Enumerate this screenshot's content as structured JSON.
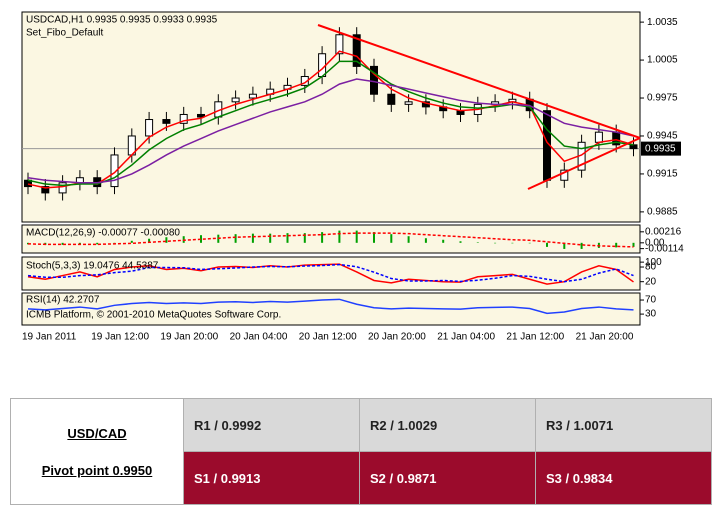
{
  "chart_data": {
    "type": "candlestick",
    "title": "USDCAD,H1  0.9935 0.9935 0.9933 0.9935",
    "subtitle": "Set_Fibo_Default",
    "open": [
      0.991,
      0.9905,
      0.99,
      0.9908,
      0.9912,
      0.9905,
      0.993,
      0.9945,
      0.9958,
      0.9955,
      0.9962,
      0.996,
      0.9972,
      0.9975,
      0.9978,
      0.9982,
      0.9985,
      0.9992,
      1.001,
      1.0025,
      1.0,
      0.9978,
      0.997,
      0.9972,
      0.9968,
      0.9965,
      0.9962,
      0.997,
      0.9972,
      0.9974,
      0.9965,
      0.991,
      0.9918,
      0.994,
      0.9948,
      0.9938
    ],
    "high": [
      0.9916,
      0.9911,
      0.9914,
      0.9918,
      0.9918,
      0.9936,
      0.9951,
      0.9964,
      0.9964,
      0.9968,
      0.9968,
      0.9978,
      0.9981,
      0.9984,
      0.9988,
      0.9991,
      0.9998,
      1.0016,
      1.0031,
      1.0031,
      1.0006,
      0.9984,
      0.9978,
      0.9978,
      0.9974,
      0.9971,
      0.9976,
      0.9978,
      0.998,
      0.998,
      0.9971,
      0.9924,
      0.9946,
      0.9954,
      0.9954,
      0.9944
    ],
    "low": [
      0.9899,
      0.9894,
      0.9894,
      0.9902,
      0.9899,
      0.9899,
      0.9924,
      0.9939,
      0.9949,
      0.9949,
      0.9954,
      0.9954,
      0.9966,
      0.9969,
      0.9972,
      0.9976,
      0.9979,
      0.9986,
      1.0004,
      0.9994,
      0.9972,
      0.9964,
      0.9964,
      0.9962,
      0.9959,
      0.9956,
      0.9956,
      0.9964,
      0.9966,
      0.9959,
      0.9904,
      0.9904,
      0.9912,
      0.9934,
      0.9932,
      0.9929
    ],
    "close": [
      0.9905,
      0.99,
      0.9908,
      0.9912,
      0.9905,
      0.993,
      0.9945,
      0.9958,
      0.9955,
      0.9962,
      0.996,
      0.9972,
      0.9975,
      0.9978,
      0.9982,
      0.9985,
      0.9992,
      1.001,
      1.0025,
      1.0,
      0.9978,
      0.997,
      0.9972,
      0.9968,
      0.9965,
      0.9962,
      0.997,
      0.9972,
      0.9974,
      0.9965,
      0.991,
      0.9918,
      0.994,
      0.9948,
      0.9938,
      0.9935
    ],
    "series": [
      {
        "color": "#ff0000",
        "values": [
          0.9907,
          0.9904,
          0.9905,
          0.9908,
          0.9907,
          0.9916,
          0.993,
          0.9944,
          0.9952,
          0.9957,
          0.9959,
          0.9965,
          0.997,
          0.9974,
          0.9978,
          0.9982,
          0.9987,
          0.9998,
          1.0012,
          1.0008,
          0.9994,
          0.9982,
          0.9975,
          0.9971,
          0.9968,
          0.9965,
          0.9966,
          0.9969,
          0.9972,
          0.9969,
          0.994,
          0.9925,
          0.993,
          0.994,
          0.9942,
          0.9938
        ]
      },
      {
        "color": "#008000",
        "values": [
          0.991,
          0.9907,
          0.9906,
          0.9907,
          0.9907,
          0.9912,
          0.9922,
          0.9934,
          0.9943,
          0.995,
          0.9954,
          0.996,
          0.9965,
          0.997,
          0.9974,
          0.9978,
          0.9983,
          0.9992,
          1.0004,
          1.0004,
          0.9995,
          0.9986,
          0.998,
          0.9975,
          0.9971,
          0.9968,
          0.9967,
          0.9968,
          0.997,
          0.9968,
          0.995,
          0.9937,
          0.9935,
          0.9938,
          0.994,
          0.9938
        ]
      },
      {
        "color": "#7b1fa2",
        "values": [
          0.9912,
          0.991,
          0.9909,
          0.9908,
          0.9908,
          0.991,
          0.9915,
          0.9922,
          0.993,
          0.9937,
          0.9943,
          0.9949,
          0.9954,
          0.9959,
          0.9964,
          0.9968,
          0.9972,
          0.9978,
          0.9986,
          0.999,
          0.9988,
          0.9985,
          0.9982,
          0.9979,
          0.9976,
          0.9973,
          0.9971,
          0.997,
          0.997,
          0.9969,
          0.9962,
          0.9955,
          0.9952,
          0.995,
          0.9948,
          0.9945
        ]
      }
    ],
    "ylim": [
      0.9877,
      1.0043
    ],
    "yticks": [
      1.0035,
      1.0005,
      0.9975,
      0.9945,
      0.9915,
      0.9885
    ],
    "current_price": 0.9935,
    "x_labels": [
      "19 Jan 2011",
      "19 Jan 12:00",
      "19 Jan 20:00",
      "20 Jan 04:00",
      "20 Jan 12:00",
      "20 Jan 20:00",
      "21 Jan 04:00",
      "21 Jan 12:00",
      "21 Jan 20:00"
    ],
    "macd": {
      "title": "MACD(12,26,9) -0.00077 -0.00080",
      "values": [
        -0.0003,
        -0.0004,
        -0.0004,
        -0.0003,
        -0.0003,
        0.0,
        0.0004,
        0.0008,
        0.0011,
        0.0013,
        0.0015,
        0.0016,
        0.0017,
        0.0018,
        0.0018,
        0.0019,
        0.0019,
        0.0021,
        0.0024,
        0.0024,
        0.0021,
        0.0017,
        0.0013,
        0.0009,
        0.0006,
        0.0003,
        0.0001,
        0.0,
        0.0,
        -0.0001,
        -0.0008,
        -0.0012,
        -0.0012,
        -0.001,
        -0.0009,
        -0.0008
      ],
      "signal": [
        -0.0002,
        -0.0003,
        -0.0003,
        -0.0003,
        -0.0003,
        -0.0002,
        -0.0001,
        0.0001,
        0.0003,
        0.0005,
        0.0007,
        0.0009,
        0.0011,
        0.0012,
        0.0013,
        0.0014,
        0.0015,
        0.0016,
        0.0018,
        0.0019,
        0.0019,
        0.0019,
        0.0018,
        0.0016,
        0.0014,
        0.0012,
        0.001,
        0.0008,
        0.0006,
        0.0005,
        0.0002,
        -0.0001,
        -0.0004,
        -0.0006,
        -0.0007,
        -0.0008
      ],
      "ylim": [
        -0.002,
        0.0035
      ],
      "yticks": [
        0.00216,
        {
          "value": 0,
          "label": "0.00"
        },
        -0.00114
      ]
    },
    "stoch": {
      "title": "Stoch(5,3,3) 19.0476 44.5387",
      "main": [
        40,
        30,
        45,
        60,
        40,
        70,
        80,
        85,
        70,
        75,
        65,
        80,
        82,
        78,
        85,
        80,
        88,
        90,
        92,
        60,
        25,
        15,
        30,
        25,
        20,
        18,
        40,
        45,
        50,
        30,
        10,
        20,
        60,
        85,
        70,
        19
      ],
      "signal": [
        45,
        38,
        38,
        45,
        48,
        57,
        63,
        78,
        78,
        77,
        70,
        73,
        76,
        80,
        82,
        81,
        84,
        86,
        90,
        81,
        59,
        33,
        23,
        23,
        25,
        21,
        26,
        34,
        45,
        42,
        30,
        20,
        30,
        55,
        72,
        45
      ],
      "ylim": [
        -14,
        121
      ],
      "yticks": [
        100,
        80,
        20
      ]
    },
    "rsi": {
      "title": "RSI(14) 42.2707",
      "values": [
        45,
        42,
        46,
        50,
        45,
        55,
        60,
        63,
        60,
        62,
        60,
        64,
        65,
        63,
        66,
        64,
        67,
        70,
        72,
        58,
        48,
        45,
        47,
        46,
        45,
        44,
        48,
        49,
        50,
        46,
        32,
        36,
        46,
        50,
        45,
        42
      ],
      "ylim": [
        -1,
        90
      ],
      "yticks": [
        70,
        30
      ]
    },
    "copyright": "ICMB Platform, © 2001-2010 MetaQuotes Software Corp."
  },
  "table": {
    "pair": "USD/CAD",
    "pivot": "Pivot point 0.9950",
    "resistance": [
      "R1 / 0.9992",
      "R2 / 1.0029",
      "R3 / 1.0071"
    ],
    "support": [
      "S1 / 0.9913",
      "S2 / 0.9871",
      "S3 / 0.9834"
    ]
  }
}
